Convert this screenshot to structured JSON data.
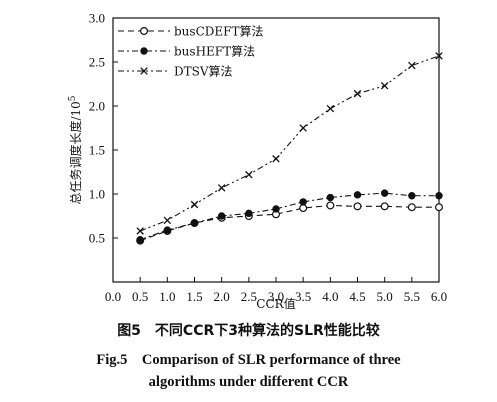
{
  "chart_data": {
    "type": "line",
    "x": [
      0.5,
      1.0,
      1.5,
      2.0,
      2.5,
      3.0,
      3.5,
      4.0,
      4.5,
      5.0,
      5.5,
      6.0
    ],
    "x_tick_labels": [
      "0.0",
      "0.5",
      "1.0",
      "1.5",
      "2.0",
      "2.5",
      "3.0",
      "3.5",
      "4.0",
      "4.5",
      "5.0",
      "5.5",
      "6.0"
    ],
    "y_tick_labels": [
      "0.5",
      "1.0",
      "1.5",
      "2.0",
      "2.5",
      "3.0"
    ],
    "y_ticks": [
      0.5,
      1.0,
      1.5,
      2.0,
      2.5,
      3.0
    ],
    "xlim": [
      0.0,
      6.0
    ],
    "ylim": [
      0.0,
      3.0
    ],
    "xlabel": "CCR值",
    "ylabel": "总任务调度长度/10",
    "ylabel_exponent": "5",
    "legend_position": "top-left",
    "grid": false,
    "series": [
      {
        "name": "busCDEFT算法",
        "marker": "circle",
        "dash": "dash",
        "values": [
          0.47,
          0.58,
          0.67,
          0.73,
          0.75,
          0.77,
          0.84,
          0.87,
          0.86,
          0.86,
          0.85,
          0.85
        ]
      },
      {
        "name": "busHEFT算法",
        "marker": "dot",
        "dash": "dashdot",
        "values": [
          0.48,
          0.59,
          0.67,
          0.75,
          0.78,
          0.83,
          0.91,
          0.96,
          0.99,
          1.01,
          0.98,
          0.98
        ]
      },
      {
        "name": "DTSV算法",
        "marker": "x",
        "dash": "dashdotdot",
        "values": [
          0.58,
          0.7,
          0.88,
          1.07,
          1.22,
          1.4,
          1.75,
          1.97,
          2.14,
          2.23,
          2.46,
          2.57
        ]
      }
    ]
  },
  "caption": {
    "cn": "图5　不同CCR下3种算法的SLR性能比较",
    "en_line1": "Fig.5　Comparison of SLR performance of three",
    "en_line2": "algorithms under different CCR"
  }
}
